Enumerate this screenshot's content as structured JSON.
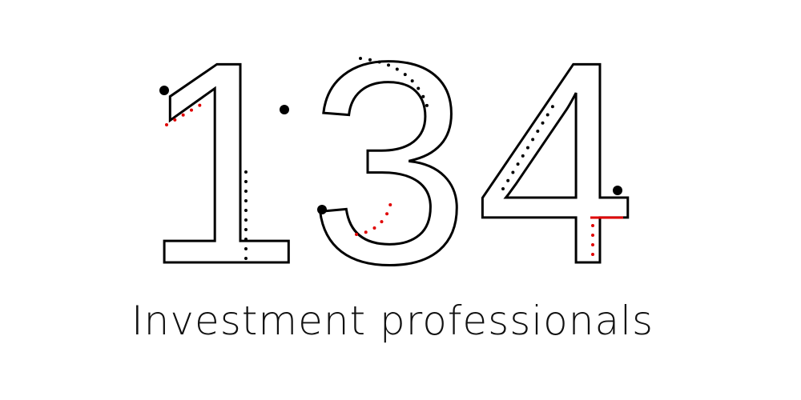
{
  "graphic": {
    "number": "134",
    "caption": "Investment professionals"
  }
}
